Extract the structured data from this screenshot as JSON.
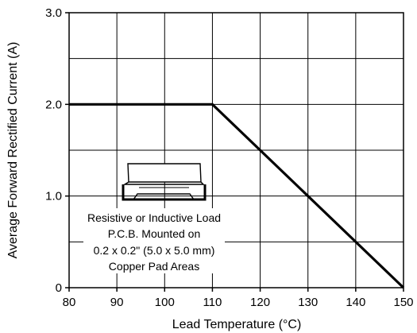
{
  "chart_data": {
    "type": "line",
    "title": "",
    "xlabel": "Lead Temperature (°C)",
    "ylabel": "Average Forward Rectified Current (A)",
    "xlim": [
      80,
      150
    ],
    "ylim": [
      0,
      3.0
    ],
    "x_ticks": [
      80,
      90,
      100,
      110,
      120,
      130,
      140,
      150
    ],
    "x_tick_labels": [
      "80",
      "90",
      "100",
      "110",
      "120",
      "130",
      "140",
      "150"
    ],
    "y_ticks": [
      0,
      1.0,
      2.0,
      3.0
    ],
    "y_tick_labels": [
      "0",
      "1.0",
      "2.0",
      "3.0"
    ],
    "grid": true,
    "series": [
      {
        "x": [
          80,
          110,
          150
        ],
        "values": [
          2.0,
          2.0,
          0.0
        ]
      }
    ],
    "annotation": {
      "icon": "smd-diode-package-icon",
      "lines": [
        "Resistive or Inductive Load",
        "P.C.B. Mounted on",
        "0.2 x 0.2\" (5.0 x 5.0 mm)",
        "Copper Pad Areas"
      ]
    }
  }
}
